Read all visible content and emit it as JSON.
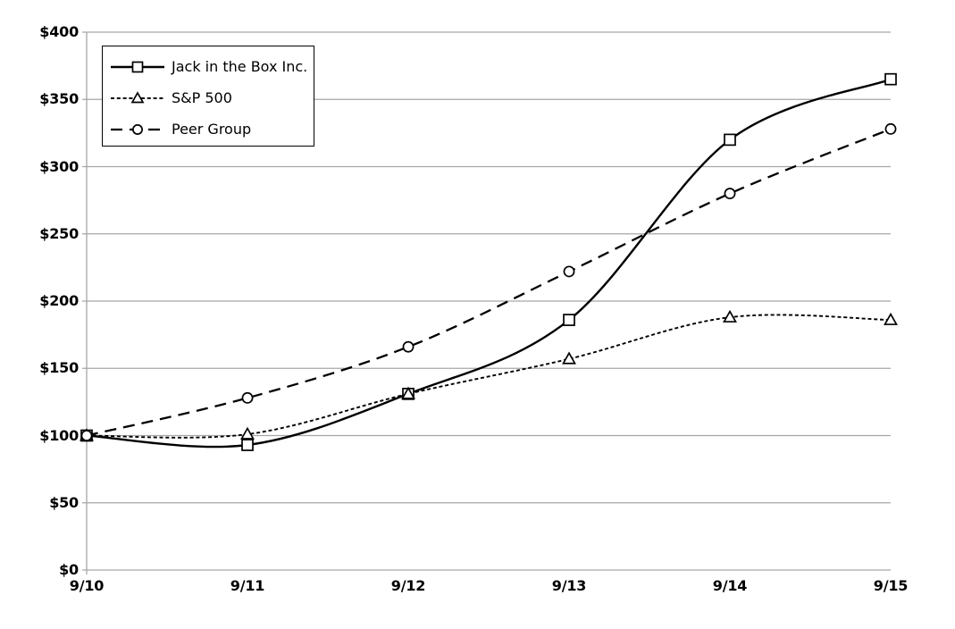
{
  "chart_data": {
    "type": "line",
    "x_labels": [
      "9/10",
      "9/11",
      "9/12",
      "9/13",
      "9/14",
      "9/15"
    ],
    "y_ticks": [
      0,
      50,
      100,
      150,
      200,
      250,
      300,
      350,
      400
    ],
    "y_tick_labels": [
      "$0",
      "$50",
      "$100",
      "$150",
      "$200",
      "$250",
      "$300",
      "$350",
      "$400"
    ],
    "ylim": [
      0,
      400
    ],
    "grid": "horizontal-only",
    "legend_position": "top-left",
    "line_smoothing": "spline",
    "series": [
      {
        "name": "Jack in the Box Inc.",
        "marker": "square",
        "line_style": "solid",
        "values": [
          100,
          93,
          131,
          186,
          320,
          365
        ]
      },
      {
        "name": "S&P 500",
        "marker": "triangle",
        "line_style": "dotted",
        "values": [
          100,
          101,
          131,
          157,
          188,
          186
        ]
      },
      {
        "name": "Peer Group",
        "marker": "circle",
        "line_style": "dashed",
        "values": [
          100,
          128,
          166,
          222,
          280,
          328
        ]
      }
    ],
    "colors": {
      "series": "#000000",
      "grid": "#a6a6a6",
      "axis": "#a6a6a6",
      "text": "#000000",
      "background": "#ffffff",
      "marker_fill": "#ffffff"
    }
  }
}
